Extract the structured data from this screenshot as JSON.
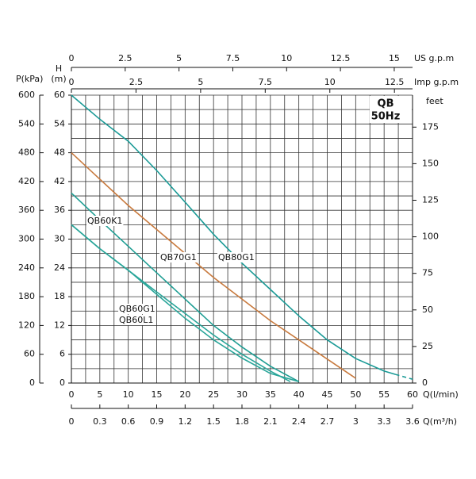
{
  "chart_data": {
    "type": "line",
    "title": "QB",
    "subtitle": "50Hz",
    "xlabel": "Q(l/min)",
    "xlim": [
      0,
      60
    ],
    "xticks": [
      0,
      5,
      10,
      15,
      20,
      25,
      30,
      35,
      40,
      45,
      50,
      55,
      60
    ],
    "xgrid": [
      0,
      2.5,
      5,
      7.5,
      10,
      12.5,
      15,
      17.5,
      20,
      22.5,
      25,
      27.5,
      30,
      32.5,
      35,
      37.5,
      40,
      42.5,
      45,
      47.5,
      50,
      52.5,
      55,
      57.5,
      60
    ],
    "x2label": "Q(m³/h)",
    "x2lim": [
      0,
      3.6
    ],
    "x2ticks": [
      0,
      0.3,
      0.6,
      0.9,
      1.2,
      1.5,
      1.8,
      2.1,
      2.4,
      2.7,
      3,
      3.3,
      3.6
    ],
    "x3label": "Imp  g.p.m",
    "x3lim": [
      0,
      13.2
    ],
    "x3ticks": [
      0,
      2.5,
      5,
      7.5,
      10,
      12.5
    ],
    "x4label": "US  g.p.m",
    "x4lim": [
      0,
      15.85
    ],
    "x4ticks": [
      0,
      2.5,
      5,
      7.5,
      10,
      12.5,
      15
    ],
    "ylabel": "H",
    "yunit": "(m)",
    "ylim": [
      0,
      60
    ],
    "yticks": [
      0,
      6,
      12,
      18,
      24,
      30,
      36,
      42,
      48,
      54,
      60
    ],
    "ygrid": [
      0,
      3,
      6,
      9,
      12,
      15,
      18,
      21,
      24,
      27,
      30,
      33,
      36,
      39,
      42,
      45,
      48,
      51,
      54,
      57,
      60
    ],
    "y2label": "feet",
    "y2lim": [
      0,
      196.85
    ],
    "y2ticks": [
      0,
      25,
      50,
      75,
      100,
      125,
      150,
      175
    ],
    "y3label": "P(kPa)",
    "y3lim": [
      0,
      600
    ],
    "y3ticks": [
      0,
      60,
      120,
      180,
      240,
      300,
      360,
      420,
      480,
      540,
      600
    ],
    "grid": true,
    "series": [
      {
        "name": "QB80G1",
        "color": "#1a9a96",
        "x": [
          0,
          5,
          10,
          15,
          20,
          25,
          30,
          35,
          40,
          45,
          50,
          55,
          57
        ],
        "values": [
          60,
          55,
          50.4,
          44.3,
          37.7,
          31,
          25,
          19.5,
          14,
          9,
          5.1,
          2.5,
          1.8
        ]
      },
      {
        "color": "#1a9a96",
        "dashed": true,
        "x": [
          57,
          60
        ],
        "values": [
          1.8,
          0.8
        ]
      },
      {
        "name": "QB70G1",
        "color": "#c87a3e",
        "x": [
          0,
          5,
          10,
          15,
          20,
          25,
          30,
          35,
          40,
          45,
          50
        ],
        "values": [
          48,
          42.5,
          37,
          32,
          27,
          22,
          17.5,
          13,
          9,
          5,
          1
        ]
      },
      {
        "name": "QB60K1",
        "color": "#1f9e94",
        "x": [
          0,
          5,
          10,
          15,
          20,
          25,
          30,
          35,
          40
        ],
        "values": [
          39.6,
          34,
          28.5,
          23,
          17.5,
          12,
          7.5,
          3.5,
          0.3
        ]
      },
      {
        "name": "QB60G1",
        "color": "#2aa69a",
        "x": [
          0,
          5,
          10,
          15,
          20,
          25,
          30,
          35,
          38.5
        ],
        "values": [
          33,
          28,
          23.5,
          19,
          14.5,
          10,
          6,
          2.5,
          0.3
        ]
      },
      {
        "name": "QB60L1",
        "color": "#2aa69a",
        "x": [
          0,
          5,
          10,
          15,
          20,
          25,
          30,
          35,
          40
        ],
        "values": [
          33,
          28,
          23.5,
          18.5,
          13.5,
          9,
          5.2,
          2,
          0.3
        ]
      }
    ]
  }
}
